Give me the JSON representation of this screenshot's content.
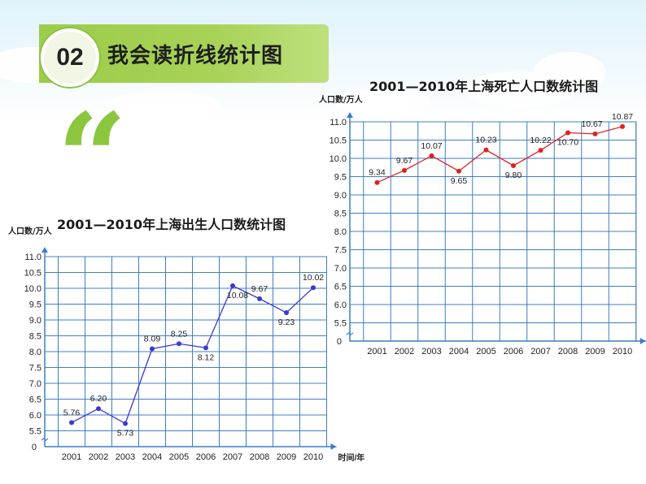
{
  "header": {
    "badge": "02",
    "title": "我会读折线统计图",
    "quote_mark": "“"
  },
  "colors": {
    "accent": "#9ccc4a",
    "grid": "#3c7fc4",
    "birth_line": "#3a3ad0",
    "death_line": "#e02020"
  },
  "chart_data": [
    {
      "type": "line",
      "title": "2001—2010年上海出生人口数统计图",
      "ylabel": "人口数/万人",
      "xlabel": "时间/年",
      "origin_label": "0",
      "x": [
        "2001",
        "2002",
        "2003",
        "2004",
        "2005",
        "2006",
        "2007",
        "2008",
        "2009",
        "2010"
      ],
      "yticks": [
        "5.5",
        "6.0",
        "6.5",
        "7.0",
        "7.5",
        "8.0",
        "8.5",
        "9.0",
        "9.5",
        "10.0",
        "10.5",
        "11.0"
      ],
      "ylim": [
        5.5,
        11.0
      ],
      "series": [
        {
          "values": [
            5.76,
            6.2,
            5.73,
            8.09,
            8.25,
            8.12,
            10.08,
            9.67,
            9.23,
            10.02
          ],
          "labels": [
            "5.76",
            "6.20",
            "5.73",
            "8.09",
            "8.25",
            "8.12",
            "10.08",
            "9.67",
            "9.23",
            "10.02"
          ]
        }
      ],
      "grid": true
    },
    {
      "type": "line",
      "title": "2001—2010年上海死亡人口数统计图",
      "ylabel": "人口数/万人",
      "origin_label": "0",
      "x": [
        "2001",
        "2002",
        "2003",
        "2004",
        "2005",
        "2006",
        "2007",
        "2008",
        "2009",
        "2010"
      ],
      "yticks": [
        "5.5",
        "6.0",
        "6.5",
        "7.0",
        "7.5",
        "8.0",
        "8.5",
        "9.0",
        "9.5",
        "10.0",
        "10.5",
        "11.0"
      ],
      "ylim": [
        5.5,
        11.0
      ],
      "series": [
        {
          "values": [
            9.34,
            9.67,
            10.07,
            9.65,
            10.23,
            9.8,
            10.22,
            10.7,
            10.67,
            10.87
          ],
          "labels": [
            "9.34",
            "9.67",
            "10.07",
            "9.65",
            "10.23",
            "9.80",
            "10.22",
            "10.70",
            "10.67",
            "10.87"
          ]
        }
      ],
      "grid": true
    }
  ]
}
